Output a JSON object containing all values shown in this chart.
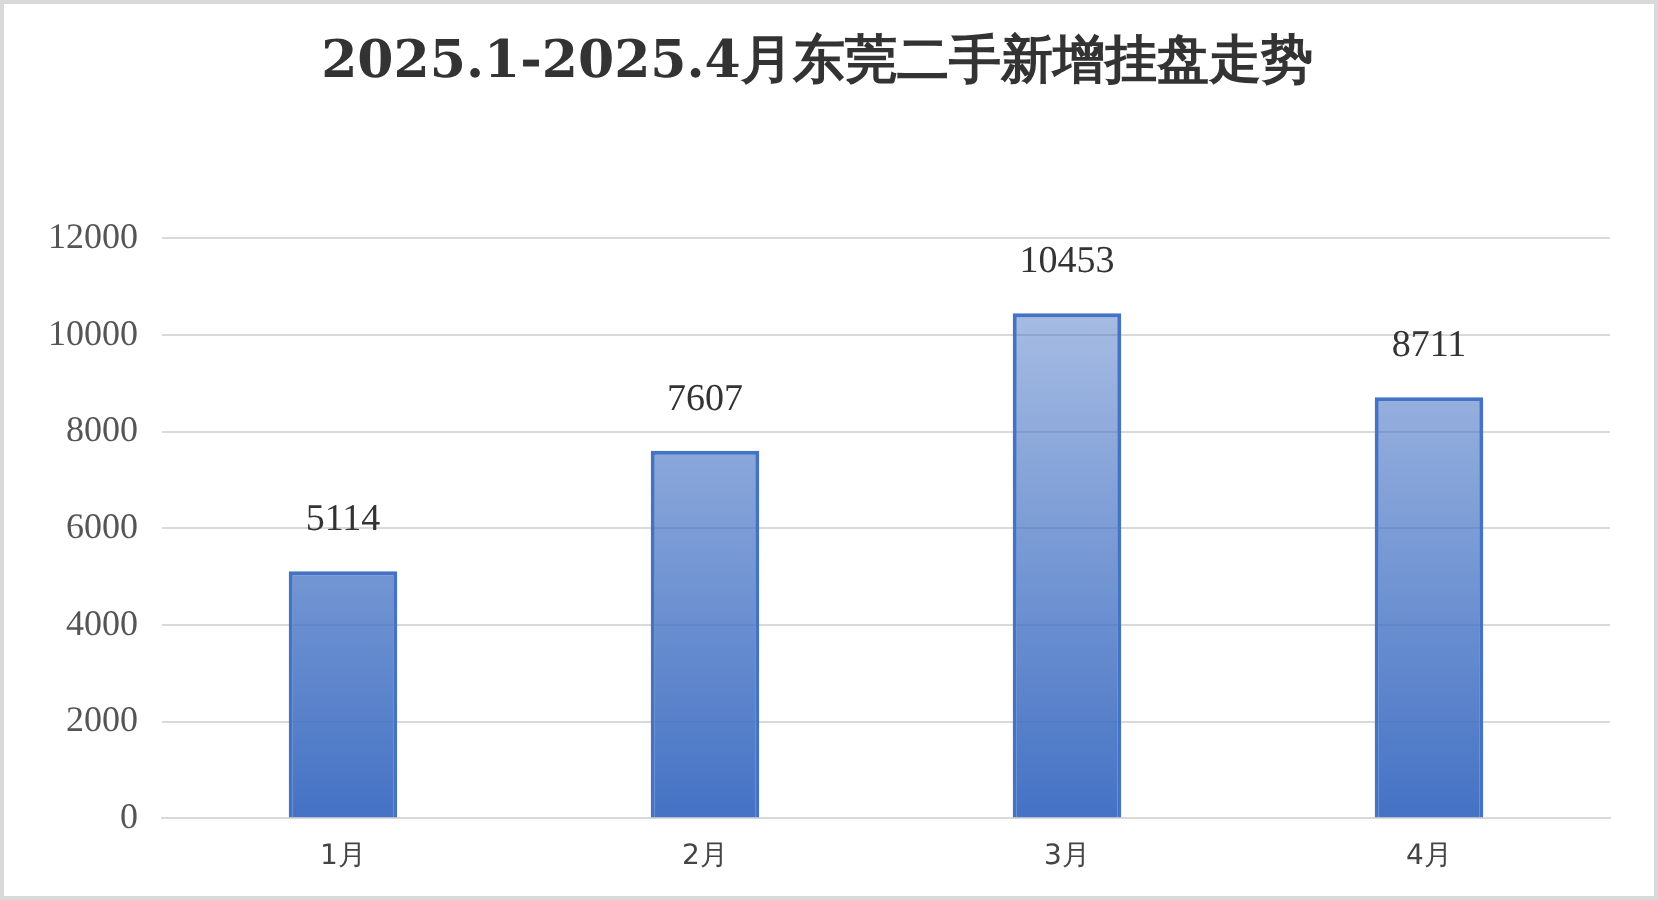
{
  "chart_data": {
    "type": "bar",
    "title": "2025.1-2025.4月东莞二手新增挂盘走势",
    "categories": [
      "1月",
      "2月",
      "3月",
      "4月"
    ],
    "values": [
      5114,
      7607,
      10453,
      8711
    ],
    "color": "#4472c4",
    "ylim": [
      0,
      12000
    ],
    "yticks": [
      0,
      2000,
      4000,
      6000,
      8000,
      10000,
      12000
    ],
    "grid": "y",
    "data_labels": true
  }
}
